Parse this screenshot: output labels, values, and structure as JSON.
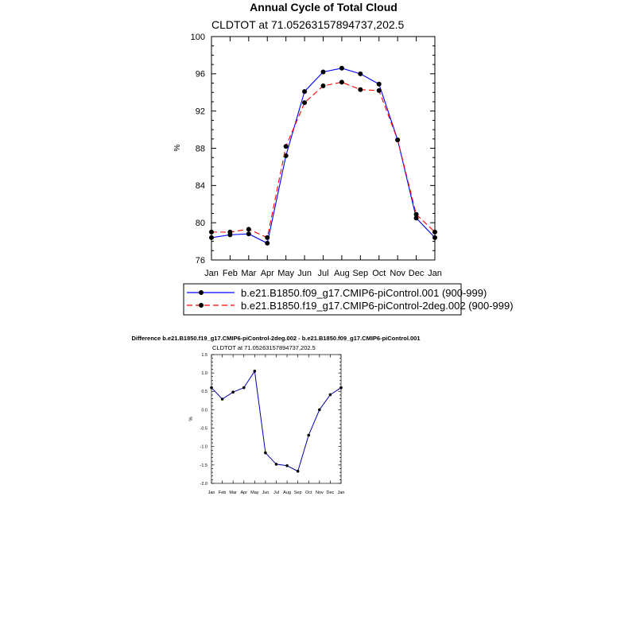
{
  "chart_data": [
    {
      "type": "line",
      "title": "Annual Cycle of Total Cloud",
      "subtitle": "CLDTOT at 71.05263157894737,202.5",
      "xlabel": "",
      "ylabel": "%",
      "ylim": [
        76,
        100
      ],
      "yticks": [
        76,
        80,
        84,
        88,
        92,
        96,
        100
      ],
      "ytick_labels": [
        "76",
        "80",
        "84",
        "88",
        "92",
        "96",
        "100"
      ],
      "categories": [
        "Jan",
        "Feb",
        "Mar",
        "Apr",
        "May",
        "Jun",
        "Jul",
        "Aug",
        "Sep",
        "Oct",
        "Nov",
        "Dec",
        "Jan"
      ],
      "grid": false,
      "legend_position": "bottom",
      "series": [
        {
          "name": "b.e21.B1850.f09_g17.CMIP6-piControl.001 (900-999)",
          "color": "#0000ff",
          "dash": "solid",
          "values": [
            78.4,
            78.7,
            78.8,
            77.8,
            87.2,
            94.1,
            96.2,
            96.6,
            96.0,
            94.9,
            88.9,
            80.5,
            78.4
          ]
        },
        {
          "name": "b.e21.B1850.f19_g17.CMIP6-piControl-2deg.002 (900-999)",
          "color": "#ff0000",
          "dash": "dashed",
          "values": [
            79.0,
            79.0,
            79.3,
            78.4,
            88.2,
            92.9,
            94.7,
            95.1,
            94.3,
            94.2,
            88.9,
            80.9,
            79.0
          ]
        }
      ]
    },
    {
      "type": "line",
      "title": "Difference b.e21.B1850.f19_g17.CMIP6-piControl-2deg.002 - b.e21.B1850.f09_g17.CMIP6-piControl.001",
      "subtitle": "CLDTOT at 71.05263157894737,202.5",
      "xlabel": "",
      "ylabel": "%",
      "ylim": [
        -2.0,
        1.5
      ],
      "yticks": [
        -2.0,
        -1.5,
        -1.0,
        -0.5,
        0.0,
        0.5,
        1.0,
        1.5
      ],
      "ytick_labels": [
        "-2.0",
        "-1.5",
        "-1.0",
        "-0.5",
        "0.0",
        "0.5",
        "1.0",
        "1.5"
      ],
      "categories": [
        "Jan",
        "Feb",
        "Mar",
        "Apr",
        "May",
        "Jun",
        "Jul",
        "Aug",
        "Sep",
        "Oct",
        "Nov",
        "Dec",
        "Jan"
      ],
      "grid": false,
      "series": [
        {
          "name": "difference",
          "color": "#0000aa",
          "dash": "solid",
          "values": [
            0.6,
            0.29,
            0.48,
            0.6,
            1.05,
            -1.17,
            -1.48,
            -1.52,
            -1.67,
            -0.69,
            0.0,
            0.41,
            0.6
          ]
        }
      ]
    }
  ]
}
